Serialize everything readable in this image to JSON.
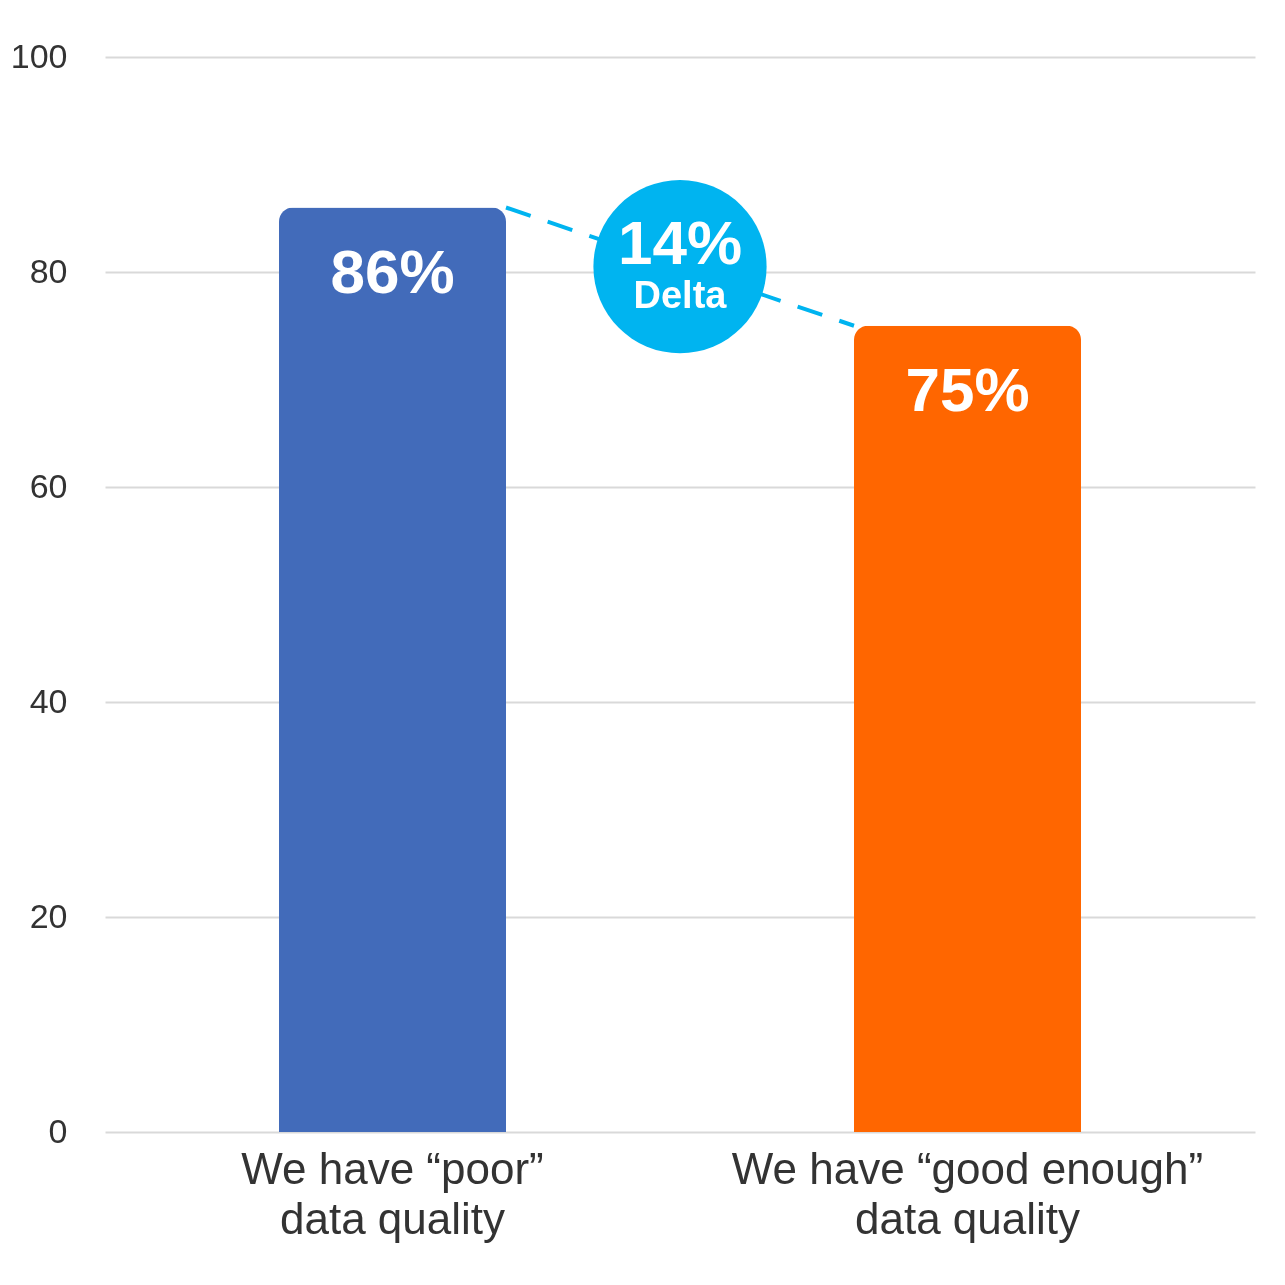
{
  "chart_data": {
    "type": "bar",
    "categories": [
      "We have “poor”\ndata quality",
      "We have “good enough”\ndata quality"
    ],
    "values": [
      86,
      75
    ],
    "colors": [
      "#426bba",
      "#ff6600"
    ],
    "value_labels": [
      "86%",
      "75%"
    ],
    "annotations": [
      "14%",
      "Delta"
    ],
    "ylim": [
      0,
      100
    ],
    "yticks": [
      0,
      20,
      40,
      60,
      80,
      100
    ],
    "grid": "y"
  }
}
